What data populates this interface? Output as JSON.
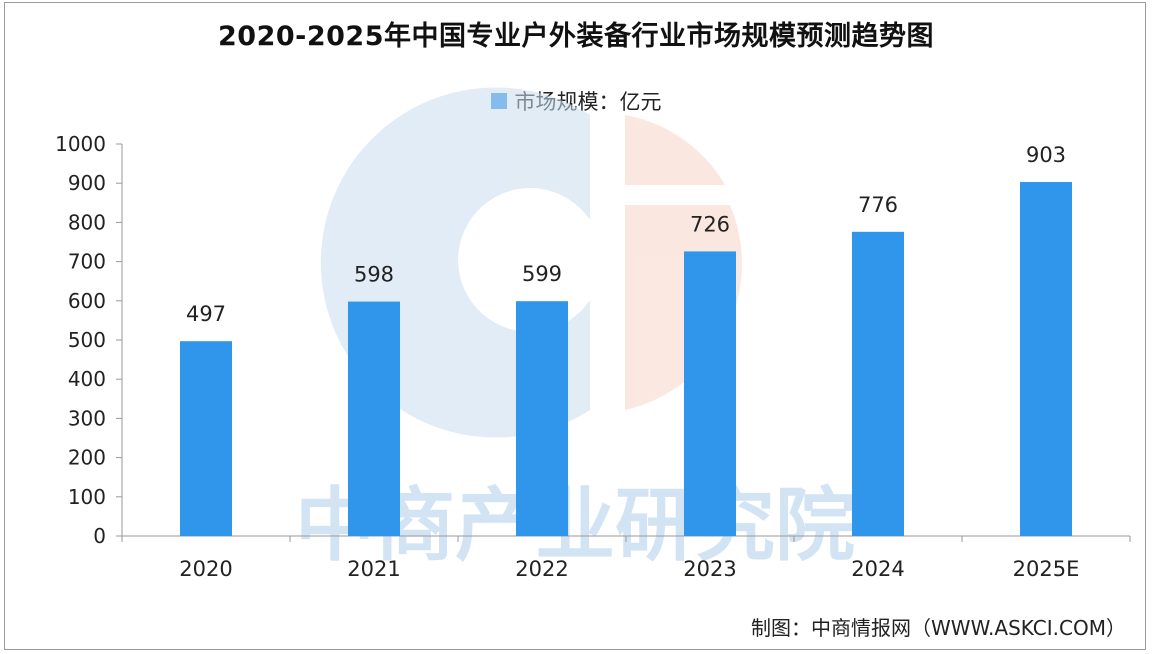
{
  "chart_data": {
    "type": "bar",
    "title": "2020-2025年中国专业户外装备行业市场规模预测趋势图",
    "categories": [
      "2020",
      "2021",
      "2022",
      "2023",
      "2024",
      "2025E"
    ],
    "series": [
      {
        "name": "市场规模：亿元",
        "values": [
          497,
          598,
          599,
          726,
          776,
          903
        ]
      }
    ],
    "ylim": [
      0,
      1000
    ],
    "yticks": [
      "0",
      "100",
      "200",
      "300",
      "400",
      "500",
      "600",
      "700",
      "800",
      "900",
      "1000"
    ],
    "legend_position": "top-center",
    "grid": false,
    "bar_color": "#2f96ec"
  },
  "watermark": "中商产业研究院",
  "credit": "制图：中商情报网（WWW.ASKCI.COM）"
}
